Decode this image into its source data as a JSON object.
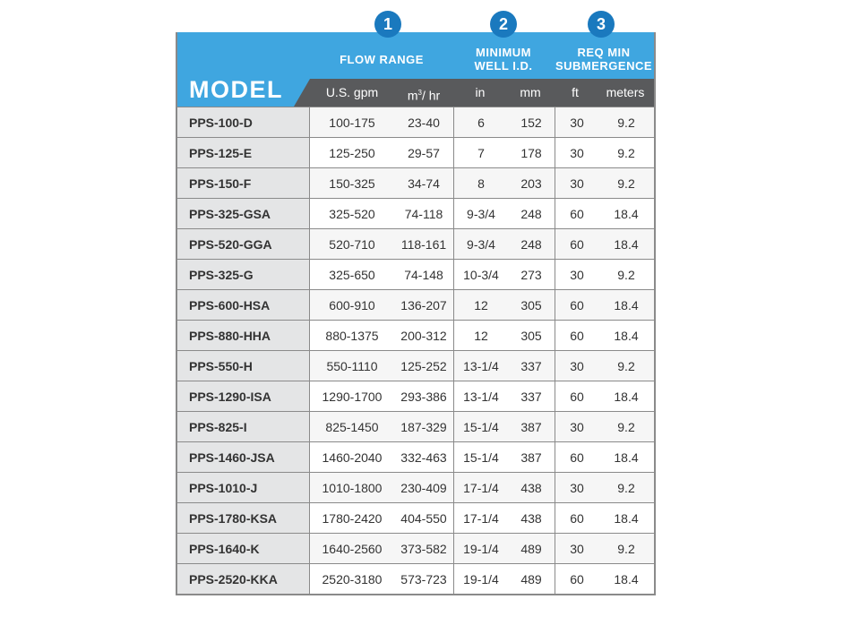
{
  "badges": [
    "1",
    "2",
    "3"
  ],
  "header": {
    "model": "MODEL",
    "flow_range": "FLOW RANGE",
    "min_well_1": "MINIMUM",
    "min_well_2": "WELL I.D.",
    "req_min_1": "REQ MIN",
    "req_min_2": "SUBMERGENCE",
    "units": {
      "gpm": "U.S. gpm",
      "m3_base": "m",
      "m3_sup": "3",
      "m3_rest": "/ hr",
      "in": "in",
      "mm": "mm",
      "ft": "ft",
      "meters": "meters"
    }
  },
  "rows": [
    {
      "model": "PPS-100-D",
      "gpm": "100-175",
      "m3": "23-40",
      "in": "6",
      "mm": "152",
      "ft": "30",
      "m": "9.2"
    },
    {
      "model": "PPS-125-E",
      "gpm": "125-250",
      "m3": "29-57",
      "in": "7",
      "mm": "178",
      "ft": "30",
      "m": "9.2"
    },
    {
      "model": "PPS-150-F",
      "gpm": "150-325",
      "m3": "34-74",
      "in": "8",
      "mm": "203",
      "ft": "30",
      "m": "9.2"
    },
    {
      "model": "PPS-325-GSA",
      "gpm": "325-520",
      "m3": "74-118",
      "in": "9-3/4",
      "mm": "248",
      "ft": "60",
      "m": "18.4"
    },
    {
      "model": "PPS-520-GGA",
      "gpm": "520-710",
      "m3": "118-161",
      "in": "9-3/4",
      "mm": "248",
      "ft": "60",
      "m": "18.4"
    },
    {
      "model": "PPS-325-G",
      "gpm": "325-650",
      "m3": "74-148",
      "in": "10-3/4",
      "mm": "273",
      "ft": "30",
      "m": "9.2"
    },
    {
      "model": "PPS-600-HSA",
      "gpm": "600-910",
      "m3": "136-207",
      "in": "12",
      "mm": "305",
      "ft": "60",
      "m": "18.4"
    },
    {
      "model": "PPS-880-HHA",
      "gpm": "880-1375",
      "m3": "200-312",
      "in": "12",
      "mm": "305",
      "ft": "60",
      "m": "18.4"
    },
    {
      "model": "PPS-550-H",
      "gpm": "550-1110",
      "m3": "125-252",
      "in": "13-1/4",
      "mm": "337",
      "ft": "30",
      "m": "9.2"
    },
    {
      "model": "PPS-1290-ISA",
      "gpm": "1290-1700",
      "m3": "293-386",
      "in": "13-1/4",
      "mm": "337",
      "ft": "60",
      "m": "18.4"
    },
    {
      "model": "PPS-825-I",
      "gpm": "825-1450",
      "m3": "187-329",
      "in": "15-1/4",
      "mm": "387",
      "ft": "30",
      "m": "9.2"
    },
    {
      "model": "PPS-1460-JSA",
      "gpm": "1460-2040",
      "m3": "332-463",
      "in": "15-1/4",
      "mm": "387",
      "ft": "60",
      "m": "18.4"
    },
    {
      "model": "PPS-1010-J",
      "gpm": "1010-1800",
      "m3": "230-409",
      "in": "17-1/4",
      "mm": "438",
      "ft": "30",
      "m": "9.2"
    },
    {
      "model": "PPS-1780-KSA",
      "gpm": "1780-2420",
      "m3": "404-550",
      "in": "17-1/4",
      "mm": "438",
      "ft": "60",
      "m": "18.4"
    },
    {
      "model": "PPS-1640-K",
      "gpm": "1640-2560",
      "m3": "373-582",
      "in": "19-1/4",
      "mm": "489",
      "ft": "30",
      "m": "9.2"
    },
    {
      "model": "PPS-2520-KKA",
      "gpm": "2520-3180",
      "m3": "573-723",
      "in": "19-1/4",
      "mm": "489",
      "ft": "60",
      "m": "18.4"
    }
  ],
  "colors": {
    "header_blue": "#3fa6e0",
    "badge_blue": "#1a79be",
    "unit_bar": "#595a5c",
    "model_col": "#e4e5e6"
  }
}
